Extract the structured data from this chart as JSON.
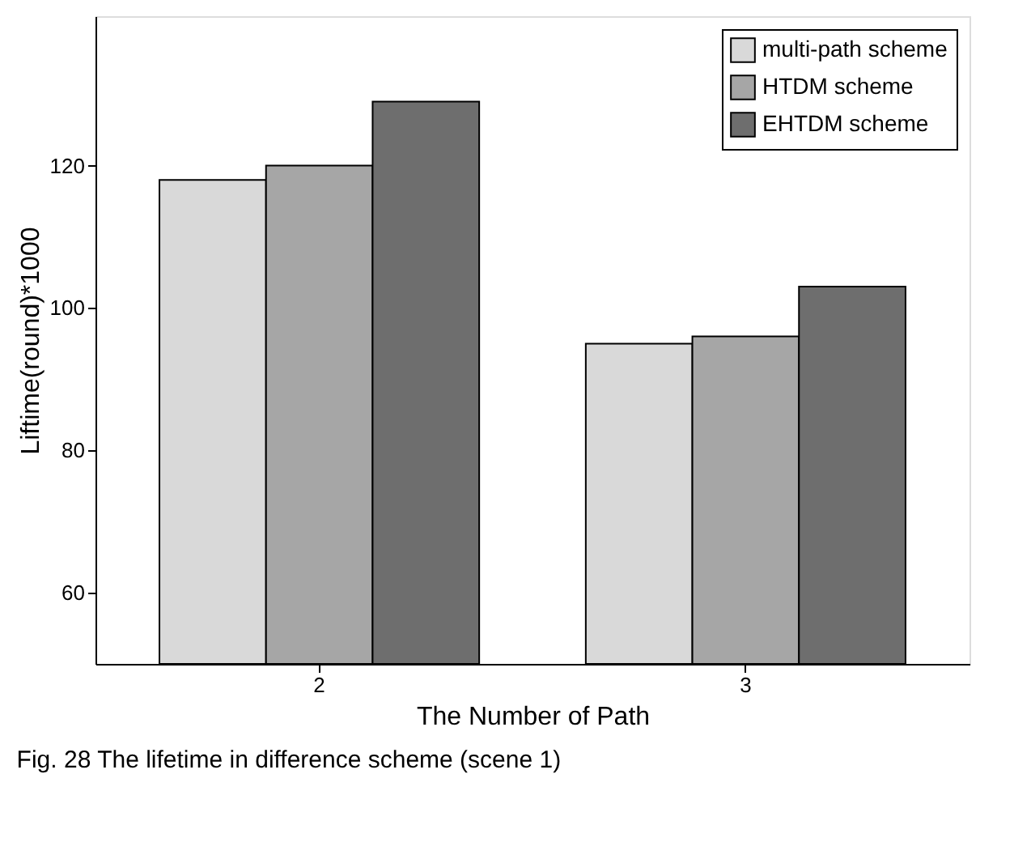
{
  "chart_data": {
    "type": "bar",
    "xlabel": "The Number of Path",
    "ylabel": "Liftime(round)*1000",
    "categories": [
      "2",
      "3"
    ],
    "series": [
      {
        "name": "multi-path scheme",
        "color": "#d9d9d9",
        "values": [
          118,
          95
        ]
      },
      {
        "name": "HTDM scheme",
        "color": "#a6a6a6",
        "values": [
          120,
          96
        ]
      },
      {
        "name": "EHTDM scheme",
        "color": "#6e6e6e",
        "values": [
          129,
          103
        ]
      }
    ],
    "ylim": [
      50,
      141
    ],
    "yticks": [
      60,
      80,
      100,
      120
    ],
    "grid": false,
    "legend": "top right",
    "annotations": [
      "Fig. 28 The lifetime in difference scheme (scene 1)"
    ]
  }
}
